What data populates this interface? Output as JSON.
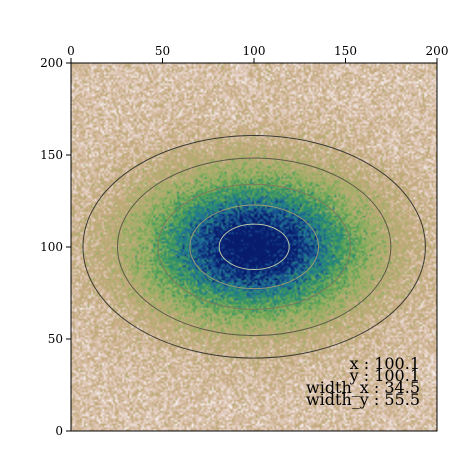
{
  "chart_data": {
    "type": "heatmap",
    "description_of_marks": "2D gaussian noise image with elliptical contour lines",
    "x_ticks": [
      "0",
      "50",
      "100",
      "150",
      "200"
    ],
    "y_ticks": [
      "0",
      "50",
      "100",
      "150",
      "200"
    ],
    "xlim": [
      0,
      200
    ],
    "ylim": [
      0,
      200
    ],
    "x_tick_position": "top",
    "grid": false,
    "colormap": "gist_earth_r",
    "gaussian": {
      "center_x": 100.1,
      "center_y": 100.1,
      "width_x": 34.5,
      "width_y": 55.5
    },
    "contour_levels": [
      0.9,
      0.7,
      0.45,
      0.2,
      0.08
    ],
    "annotations": [
      "x : 100.1",
      "y : 100.1",
      "width_x : 34.5",
      "width_y : 55.5"
    ]
  }
}
